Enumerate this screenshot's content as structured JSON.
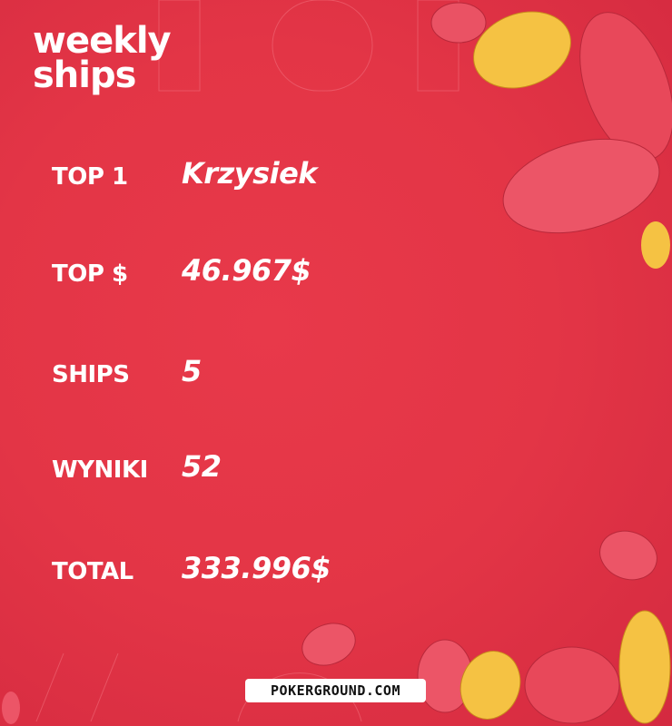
{
  "title": {
    "line1": "weekly",
    "line2": "ships"
  },
  "stats": [
    {
      "label": "TOP 1",
      "value": "Krzysiek"
    },
    {
      "label": "TOP $",
      "value": "46.967$"
    },
    {
      "label": "SHIPS",
      "value": "5"
    },
    {
      "label": "WYNIKI",
      "value": "52"
    },
    {
      "label": "TOTAL",
      "value": "333.996$"
    }
  ],
  "logo": "POKERGROUND.COM",
  "colors": {
    "background": "#e33546",
    "leaf_red": "#e8485a",
    "leaf_yellow": "#f5c243",
    "text": "#ffffff"
  }
}
